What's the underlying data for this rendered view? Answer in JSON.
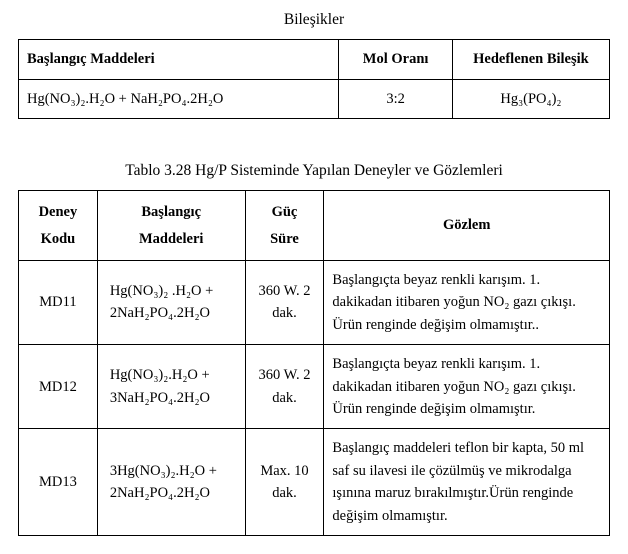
{
  "table1": {
    "caption_line": "Bileşikler",
    "headers": {
      "h1": "Başlangıç Maddeleri",
      "h2": "Mol Oranı",
      "h3": "Hedeflenen Bileşik"
    },
    "row": {
      "materials": "Hg(NO₃)₂.H₂O + NaH₂PO₄.2H₂O",
      "ratio": "3:2",
      "target": "Hg₃(PO₄)₂"
    }
  },
  "table2": {
    "caption": "Tablo 3.28 Hg/P Sisteminde Yapılan Deneyler ve Gözlemleri",
    "headers": {
      "h1a": "Deney",
      "h1b": "Kodu",
      "h2a": "Başlangıç",
      "h2b": "Maddeleri",
      "h3a": "Güç",
      "h3b": "Süre",
      "h4": "Gözlem"
    },
    "rows": [
      {
        "code": "MD11",
        "materials": "Hg(NO₃)₂ .H₂O + 2NaH₂PO₄.2H₂O",
        "power": "360 W. 2 dak.",
        "observation": "Başlangıçta beyaz renkli karışım. 1. dakikadan itibaren yoğun NO₂ gazı çıkışı. Ürün renginde değişim olmamıştır.."
      },
      {
        "code": "MD12",
        "materials": "Hg(NO₃)₂.H₂O + 3NaH₂PO₄.2H₂O",
        "power": "360 W. 2 dak.",
        "observation": "Başlangıçta beyaz renkli karışım. 1. dakikadan itibaren yoğun NO₂ gazı çıkışı. Ürün renginde değişim olmamıştır."
      },
      {
        "code": "MD13",
        "materials": "3Hg(NO₃)₂.H₂O + 2NaH₂PO₄.2H₂O",
        "power": "Max. 10 dak.",
        "observation": "Başlangıç maddeleri teflon bir kapta, 50 ml saf su ilavesi ile çözülmüş ve mikrodalga ışınına maruz bırakılmıştır.Ürün renginde değişim olmamıştır."
      }
    ]
  }
}
